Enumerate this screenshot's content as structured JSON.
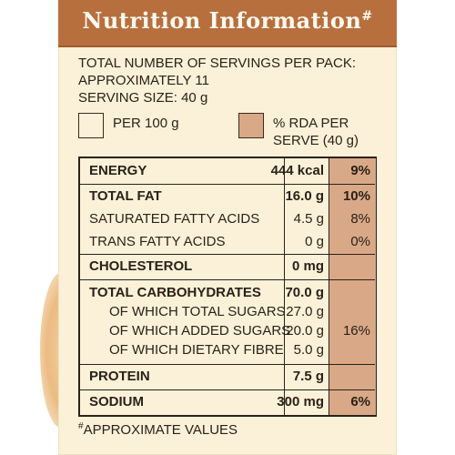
{
  "banner": {
    "title": "Nutrition Information",
    "title_mark": "#"
  },
  "intro": {
    "line1": "TOTAL NUMBER OF SERVINGS PER PACK:",
    "line2": "APPROXIMATELY 11",
    "line3": "SERVING SIZE: 40 g"
  },
  "legend": {
    "per100_label": "PER 100 g",
    "rda_label_line1": "% RDA PER",
    "rda_label_line2": "SERVE (40 g)",
    "per100_color": "#fbf1d8",
    "rda_color": "#d9a987"
  },
  "rows": [
    {
      "name": "ENERGY",
      "amount": "444 kcal",
      "rda": "9%"
    },
    {
      "name": "TOTAL FAT",
      "amount": "16.0 g",
      "rda": "10%"
    },
    {
      "name": "SATURATED FATTY ACIDS",
      "amount": "4.5 g",
      "rda": "8%"
    },
    {
      "name": "TRANS FATTY ACIDS",
      "amount": "0 g",
      "rda": "0%"
    },
    {
      "name": "CHOLESTEROL",
      "amount": "0 mg",
      "rda": ""
    },
    {
      "name": "TOTAL CARBOHYDRATES",
      "amount": "70.0 g",
      "rda": ""
    },
    {
      "name": "OF WHICH TOTAL SUGARS",
      "amount": "27.0 g",
      "rda": ""
    },
    {
      "name": "OF WHICH ADDED SUGARS",
      "amount": "20.0 g",
      "rda": "16%"
    },
    {
      "name": "OF WHICH DIETARY FIBRE",
      "amount": "5.0 g",
      "rda": ""
    },
    {
      "name": "PROTEIN",
      "amount": "7.5 g",
      "rda": ""
    },
    {
      "name": "SODIUM",
      "amount": "300 mg",
      "rda": "6%"
    }
  ],
  "footnote": {
    "mark": "#",
    "text": "APPROXIMATE VALUES"
  }
}
